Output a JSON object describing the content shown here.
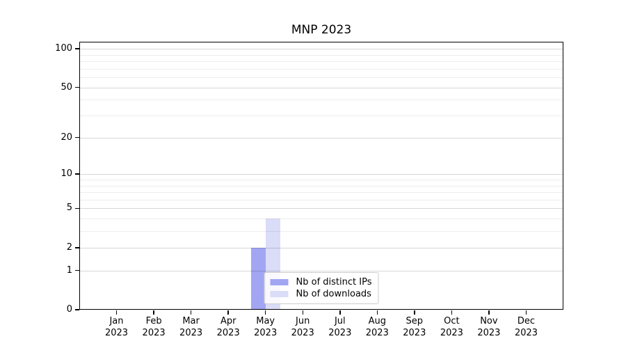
{
  "chart_data": {
    "type": "bar",
    "title": "MNP 2023",
    "x": {
      "categories": [
        "Jan",
        "Feb",
        "Mar",
        "Apr",
        "May",
        "Jun",
        "Jul",
        "Aug",
        "Sep",
        "Oct",
        "Nov",
        "Dec"
      ],
      "year_label": "2023"
    },
    "series": [
      {
        "name": "Nb of distinct IPs",
        "color": "#a2a5f1",
        "values": [
          0,
          0,
          0,
          0,
          2,
          0,
          0,
          0,
          0,
          0,
          0,
          0
        ]
      },
      {
        "name": "Nb of downloads",
        "color": "#dadcf8",
        "values": [
          0,
          0,
          0,
          0,
          4,
          0,
          0,
          0,
          0,
          0,
          0,
          0
        ]
      }
    ],
    "y_axis": {
      "scale": "log1p",
      "major_ticks": [
        0,
        1,
        2,
        5,
        10,
        20,
        50,
        100
      ],
      "minor_ticks": [
        3,
        4,
        6,
        7,
        8,
        9,
        30,
        40,
        60,
        70,
        80,
        90
      ],
      "ylim": [
        0,
        113
      ]
    },
    "legend": {
      "position": "lower center",
      "entries": [
        "Nb of distinct IPs",
        "Nb of downloads"
      ]
    },
    "grid": true
  }
}
